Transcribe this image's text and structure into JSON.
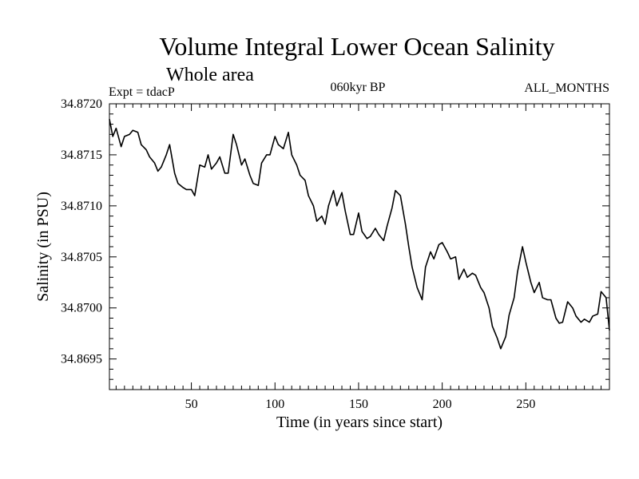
{
  "chart_data": {
    "type": "line",
    "title": "Volume Integral Lower Ocean Salinity",
    "subtitle": "Whole area",
    "experiment_label": "Expt = tdacP",
    "period_label": "060kyr BP",
    "months_label": "ALL_MONTHS",
    "xlabel": "Time (in years since start)",
    "ylabel": "Salinity (in PSU)",
    "xlim": [
      1,
      300
    ],
    "ylim": [
      34.8692,
      34.872
    ],
    "x_ticks": [
      50,
      100,
      150,
      200,
      250
    ],
    "x_tick_labels": [
      "50",
      "100",
      "150",
      "200",
      "250"
    ],
    "y_ticks": [
      34.8695,
      34.87,
      34.8705,
      34.871,
      34.8715,
      34.872
    ],
    "y_tick_labels": [
      "34.8695",
      "34.8700",
      "34.8705",
      "34.8710",
      "34.8715",
      "34.8720"
    ],
    "grid": false,
    "series": [
      {
        "name": "Salinity",
        "color": "#000000",
        "x": [
          1,
          3,
          5,
          8,
          10,
          13,
          15,
          18,
          20,
          23,
          25,
          28,
          30,
          32,
          35,
          37,
          40,
          42,
          45,
          47,
          50,
          52,
          55,
          58,
          60,
          62,
          65,
          67,
          70,
          72,
          75,
          77,
          80,
          82,
          85,
          87,
          90,
          92,
          95,
          97,
          100,
          102,
          105,
          108,
          110,
          113,
          115,
          118,
          120,
          123,
          125,
          128,
          130,
          132,
          135,
          137,
          140,
          142,
          145,
          147,
          150,
          152,
          155,
          157,
          160,
          162,
          165,
          167,
          170,
          172,
          175,
          178,
          180,
          182,
          185,
          188,
          190,
          193,
          195,
          198,
          200,
          203,
          205,
          208,
          210,
          213,
          215,
          218,
          220,
          223,
          225,
          228,
          230,
          233,
          235,
          238,
          240,
          243,
          245,
          248,
          250,
          253,
          255,
          258,
          260,
          263,
          265,
          268,
          270,
          272,
          275,
          278,
          280,
          283,
          285,
          288,
          290,
          293,
          295,
          298,
          300
        ],
        "y": [
          34.87185,
          34.87168,
          34.87176,
          34.87158,
          34.87168,
          34.8717,
          34.87174,
          34.87172,
          34.8716,
          34.87155,
          34.87148,
          34.87142,
          34.87134,
          34.87138,
          34.8715,
          34.8716,
          34.87132,
          34.87122,
          34.87118,
          34.87116,
          34.87116,
          34.8711,
          34.8714,
          34.87138,
          34.8715,
          34.87136,
          34.87142,
          34.87148,
          34.87132,
          34.87132,
          34.8717,
          34.8716,
          34.8714,
          34.87146,
          34.8713,
          34.87122,
          34.8712,
          34.87142,
          34.8715,
          34.8715,
          34.87168,
          34.8716,
          34.87156,
          34.87172,
          34.8715,
          34.8714,
          34.8713,
          34.87125,
          34.8711,
          34.871,
          34.87085,
          34.8709,
          34.87082,
          34.871,
          34.87115,
          34.871,
          34.87113,
          34.87095,
          34.87072,
          34.87072,
          34.87093,
          34.87075,
          34.87068,
          34.8707,
          34.87078,
          34.87072,
          34.87066,
          34.8708,
          34.87098,
          34.87115,
          34.8711,
          34.87082,
          34.8706,
          34.8704,
          34.8702,
          34.87008,
          34.8704,
          34.87055,
          34.87048,
          34.87062,
          34.87064,
          34.87055,
          34.87048,
          34.8705,
          34.87028,
          34.87038,
          34.8703,
          34.87034,
          34.87032,
          34.8702,
          34.87015,
          34.87,
          34.86982,
          34.8697,
          34.8696,
          34.86972,
          34.86993,
          34.8701,
          34.87035,
          34.8706,
          34.87045,
          34.87025,
          34.87015,
          34.87025,
          34.8701,
          34.87008,
          34.87008,
          34.8699,
          34.86985,
          34.86986,
          34.87006,
          34.87,
          34.86992,
          34.86986,
          34.86989,
          34.86986,
          34.86992,
          34.86994,
          34.87016,
          34.8701,
          34.86978
        ]
      }
    ]
  }
}
